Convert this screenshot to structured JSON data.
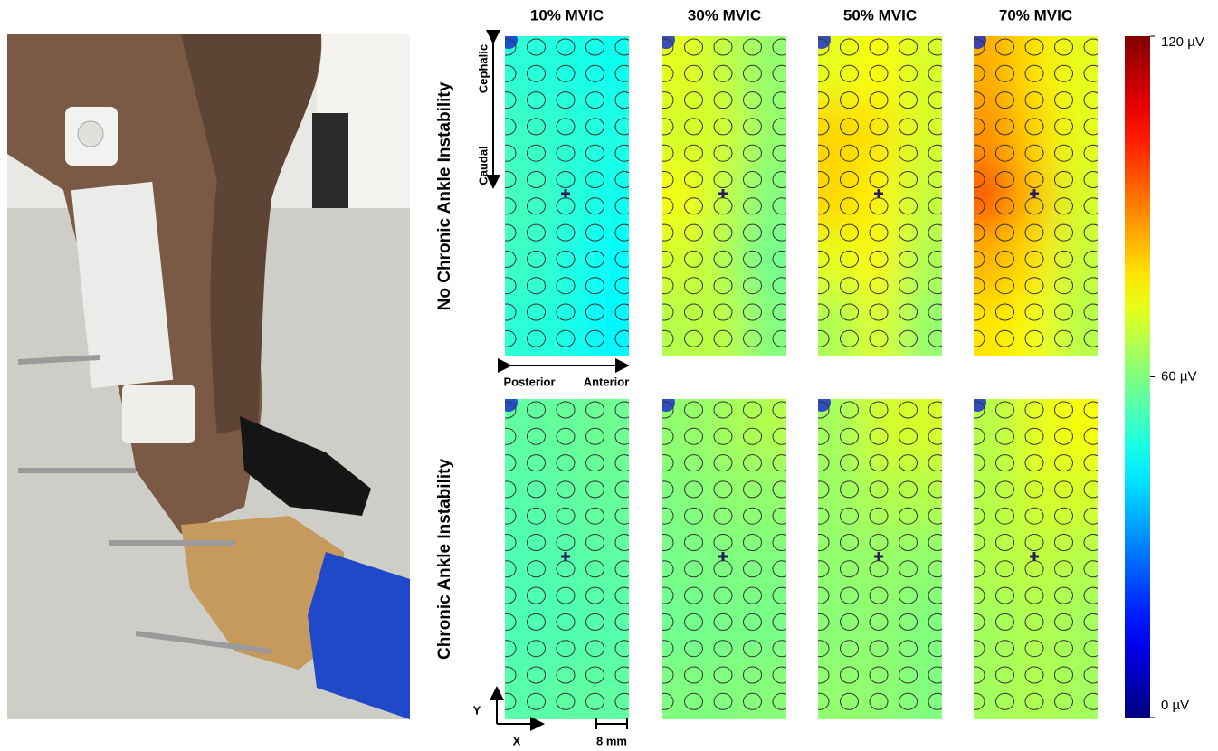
{
  "chart_data": {
    "type": "heatmap",
    "columns": [
      "10% MVIC",
      "30% MVIC",
      "50% MVIC",
      "70% MVIC"
    ],
    "rows": [
      "No Chronic Ankle Instability",
      "Chronic Ankle Instability"
    ],
    "annotations": {
      "cephalic": "Cephalic",
      "caudal": "Caudal",
      "posterior": "Posterior",
      "anterior": "Anterior",
      "y_axis": "Y",
      "x_axis": "X",
      "scale": "8 mm"
    },
    "colorbar": {
      "lim": [
        0,
        120
      ],
      "ticks": [
        {
          "value": 120,
          "label": "120 µV"
        },
        {
          "value": 60,
          "label": "60 µV"
        },
        {
          "value": 0,
          "label": "0 µV"
        }
      ]
    },
    "maps": [
      {
        "values": [
          [
            50,
            48,
            47
          ],
          [
            52,
            50,
            48
          ],
          [
            53,
            50,
            47
          ],
          [
            52,
            49,
            45
          ],
          [
            50,
            48,
            44
          ]
        ]
      },
      {
        "values": [
          [
            72,
            68,
            62
          ],
          [
            70,
            70,
            62
          ],
          [
            74,
            68,
            60
          ],
          [
            70,
            66,
            58
          ],
          [
            66,
            68,
            60
          ]
        ]
      },
      {
        "values": [
          [
            72,
            75,
            70
          ],
          [
            80,
            78,
            70
          ],
          [
            80,
            76,
            68
          ],
          [
            72,
            76,
            65
          ],
          [
            65,
            72,
            62
          ]
        ]
      },
      {
        "values": [
          [
            85,
            78,
            72
          ],
          [
            88,
            80,
            72
          ],
          [
            95,
            82,
            70
          ],
          [
            84,
            78,
            68
          ],
          [
            78,
            74,
            66
          ]
        ]
      },
      {
        "values": [
          [
            56,
            57,
            58
          ],
          [
            55,
            56,
            57
          ],
          [
            54,
            55,
            56
          ],
          [
            54,
            54,
            55
          ],
          [
            55,
            56,
            56
          ]
        ]
      },
      {
        "values": [
          [
            62,
            64,
            66
          ],
          [
            60,
            62,
            62
          ],
          [
            59,
            60,
            60
          ],
          [
            58,
            59,
            59
          ],
          [
            60,
            60,
            61
          ]
        ]
      },
      {
        "values": [
          [
            64,
            70,
            70
          ],
          [
            63,
            66,
            66
          ],
          [
            62,
            63,
            62
          ],
          [
            61,
            62,
            60
          ],
          [
            62,
            62,
            60
          ]
        ]
      },
      {
        "values": [
          [
            66,
            72,
            74
          ],
          [
            66,
            70,
            70
          ],
          [
            66,
            68,
            66
          ],
          [
            64,
            66,
            64
          ],
          [
            64,
            66,
            64
          ]
        ]
      }
    ]
  }
}
